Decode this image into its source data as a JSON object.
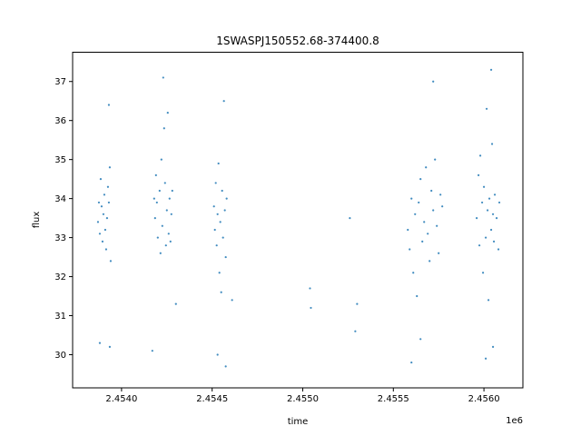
{
  "chart_data": {
    "type": "scatter",
    "title": "1SWASPJ150552.68-374400.8",
    "xlabel": "time",
    "ylabel": "flux",
    "x_offset_label": "1e6",
    "xlim": [
      2453730,
      2456215
    ],
    "ylim": [
      29.15,
      37.75
    ],
    "x_ticks": [
      2.454,
      2.4545,
      2.455,
      2.4555,
      2.456
    ],
    "x_tick_labels": [
      "2.4540",
      "2.4545",
      "2.4550",
      "2.4555",
      "2.4560"
    ],
    "y_ticks": [
      30,
      31,
      32,
      33,
      34,
      35,
      36,
      37
    ],
    "y_tick_labels": [
      "30",
      "31",
      "32",
      "33",
      "34",
      "35",
      "36",
      "37"
    ],
    "grid": false,
    "legend": "none",
    "marker_color": "#1f77b4",
    "series": [
      {
        "points": [
          [
            2453870,
            33.4
          ],
          [
            2453875,
            33.9
          ],
          [
            2453880,
            33.1
          ],
          [
            2453885,
            34.5
          ],
          [
            2453890,
            33.8
          ],
          [
            2453895,
            32.9
          ],
          [
            2453900,
            33.6
          ],
          [
            2453905,
            34.1
          ],
          [
            2453910,
            33.2
          ],
          [
            2453915,
            32.7
          ],
          [
            2453920,
            33.5
          ],
          [
            2453925,
            34.3
          ],
          [
            2453930,
            33.9
          ],
          [
            2453935,
            34.8
          ],
          [
            2453940,
            32.4
          ],
          [
            2453880,
            30.3
          ],
          [
            2453930,
            36.4
          ],
          [
            2453935,
            30.2
          ],
          [
            2454180,
            34.0
          ],
          [
            2454185,
            33.5
          ],
          [
            2454190,
            34.6
          ],
          [
            2454195,
            33.9
          ],
          [
            2454200,
            33.0
          ],
          [
            2454210,
            34.2
          ],
          [
            2454215,
            32.6
          ],
          [
            2454220,
            35.0
          ],
          [
            2454225,
            33.3
          ],
          [
            2454235,
            35.8
          ],
          [
            2454240,
            34.4
          ],
          [
            2454245,
            32.8
          ],
          [
            2454250,
            33.7
          ],
          [
            2454255,
            36.2
          ],
          [
            2454260,
            33.1
          ],
          [
            2454265,
            34.0
          ],
          [
            2454270,
            32.9
          ],
          [
            2454275,
            33.6
          ],
          [
            2454280,
            34.2
          ],
          [
            2454170,
            30.1
          ],
          [
            2454230,
            37.1
          ],
          [
            2454300,
            31.3
          ],
          [
            2454510,
            33.8
          ],
          [
            2454515,
            33.2
          ],
          [
            2454520,
            34.4
          ],
          [
            2454525,
            32.8
          ],
          [
            2454530,
            33.6
          ],
          [
            2454535,
            34.9
          ],
          [
            2454540,
            32.1
          ],
          [
            2454545,
            33.4
          ],
          [
            2454550,
            31.6
          ],
          [
            2454555,
            34.2
          ],
          [
            2454560,
            33.0
          ],
          [
            2454565,
            36.5
          ],
          [
            2454570,
            33.7
          ],
          [
            2454575,
            32.5
          ],
          [
            2454580,
            34.0
          ],
          [
            2454530,
            30.0
          ],
          [
            2454575,
            29.7
          ],
          [
            2454610,
            31.4
          ],
          [
            2455040,
            31.7
          ],
          [
            2455045,
            31.2
          ],
          [
            2455260,
            33.5
          ],
          [
            2455300,
            31.3
          ],
          [
            2455290,
            30.6
          ],
          [
            2455580,
            33.2
          ],
          [
            2455590,
            32.7
          ],
          [
            2455600,
            34.0
          ],
          [
            2455610,
            32.1
          ],
          [
            2455620,
            33.6
          ],
          [
            2455630,
            31.5
          ],
          [
            2455640,
            33.9
          ],
          [
            2455650,
            34.5
          ],
          [
            2455660,
            32.9
          ],
          [
            2455670,
            33.4
          ],
          [
            2455680,
            34.8
          ],
          [
            2455690,
            33.1
          ],
          [
            2455700,
            32.4
          ],
          [
            2455710,
            34.2
          ],
          [
            2455720,
            33.7
          ],
          [
            2455730,
            35.0
          ],
          [
            2455740,
            33.3
          ],
          [
            2455750,
            32.6
          ],
          [
            2455760,
            34.1
          ],
          [
            2455770,
            33.8
          ],
          [
            2455600,
            29.8
          ],
          [
            2455650,
            30.4
          ],
          [
            2455720,
            37.0
          ],
          [
            2455960,
            33.5
          ],
          [
            2455970,
            34.6
          ],
          [
            2455975,
            32.8
          ],
          [
            2455980,
            35.1
          ],
          [
            2455990,
            33.9
          ],
          [
            2455995,
            32.1
          ],
          [
            2456000,
            34.3
          ],
          [
            2456010,
            33.0
          ],
          [
            2456015,
            36.3
          ],
          [
            2456020,
            33.7
          ],
          [
            2456025,
            31.4
          ],
          [
            2456030,
            34.0
          ],
          [
            2456040,
            33.2
          ],
          [
            2456045,
            35.4
          ],
          [
            2456050,
            33.6
          ],
          [
            2456055,
            32.9
          ],
          [
            2456060,
            34.1
          ],
          [
            2456070,
            33.5
          ],
          [
            2456080,
            32.7
          ],
          [
            2456085,
            33.9
          ],
          [
            2456010,
            29.9
          ],
          [
            2456040,
            37.3
          ],
          [
            2456050,
            30.2
          ]
        ]
      }
    ]
  }
}
